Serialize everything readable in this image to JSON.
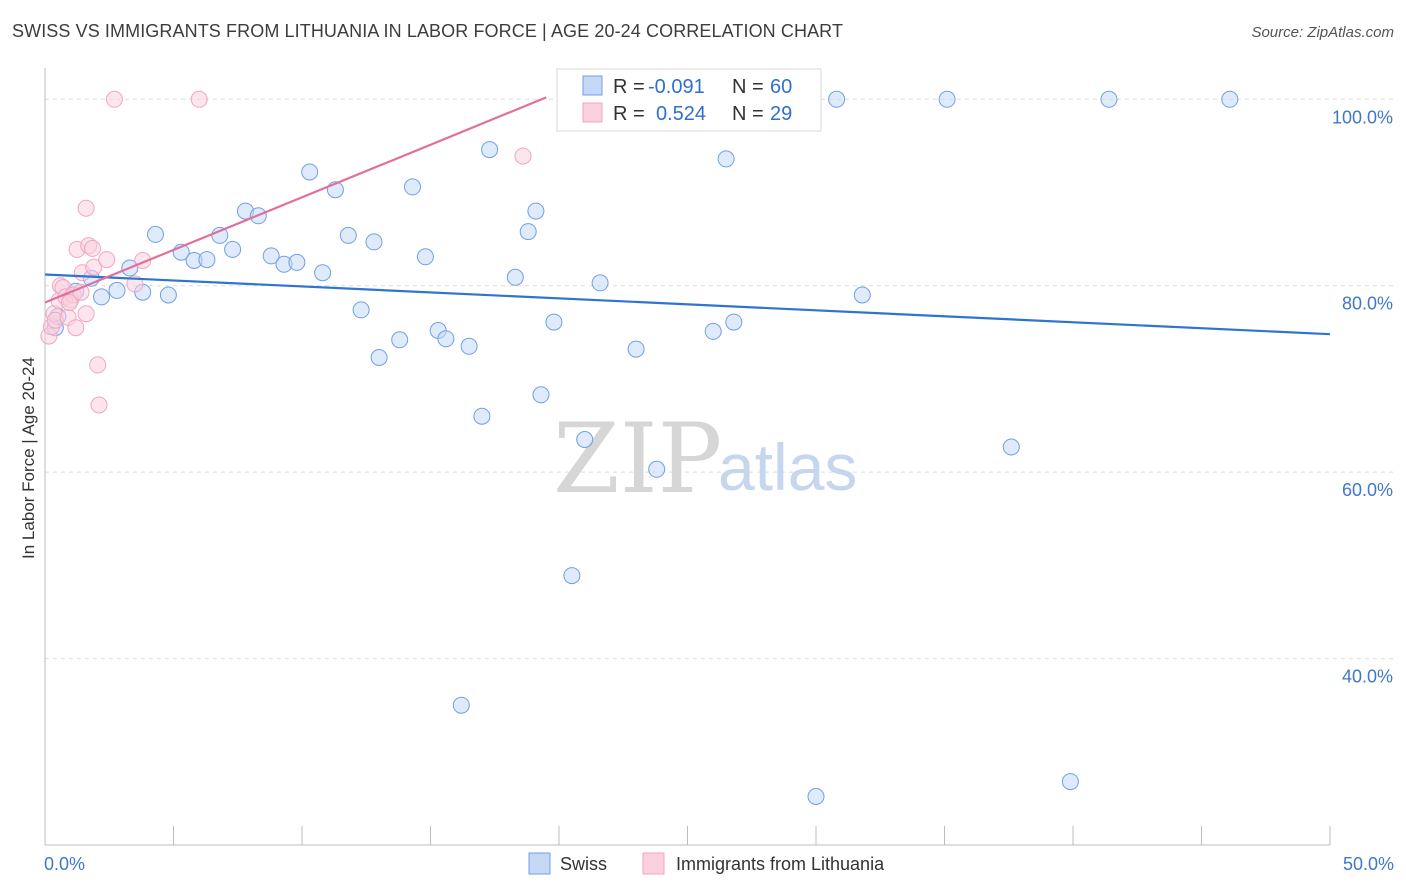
{
  "title": "SWISS VS IMMIGRANTS FROM LITHUANIA IN LABOR FORCE | AGE 20-24 CORRELATION CHART",
  "source": "Source: ZipAtlas.com",
  "watermark": {
    "zip": "ZIP",
    "atlas": "atlas"
  },
  "chart_data": {
    "type": "scatter",
    "ylabel": "In Labor Force | Age 20-24",
    "xlim": [
      0,
      50
    ],
    "ylim": [
      20,
      104
    ],
    "x_tick_labels": {
      "min": "0.0%",
      "max": "50.0%"
    },
    "y_ticks": [
      {
        "value": 100,
        "label": "100.0%"
      },
      {
        "value": 80,
        "label": "80.0%"
      },
      {
        "value": 60,
        "label": "60.0%"
      },
      {
        "value": 40,
        "label": "40.0%"
      }
    ],
    "grid": true,
    "legend_placement": "top-center",
    "stats": [
      {
        "r_label": "R =",
        "r_value": "-0.091",
        "n_label": "N =",
        "n_value": "60"
      },
      {
        "r_label": "R =",
        "r_value": "0.524",
        "n_label": "N =",
        "n_value": "29"
      }
    ],
    "series": [
      {
        "name": "Swiss",
        "color": "#6fa0e6",
        "fill": "#c4d8f5",
        "line_color": "#2f74d0",
        "trend": {
          "x0": 0,
          "y0": 81.2,
          "x1": 50,
          "y1": 74.8
        },
        "points": [
          [
            0.4,
            75.5
          ],
          [
            0.5,
            76.7
          ],
          [
            1.2,
            79.4
          ],
          [
            1.8,
            80.8
          ],
          [
            2.2,
            78.8
          ],
          [
            2.8,
            79.5
          ],
          [
            3.3,
            81.9
          ],
          [
            3.8,
            79.3
          ],
          [
            4.3,
            85.5
          ],
          [
            4.8,
            79.0
          ],
          [
            5.3,
            83.6
          ],
          [
            5.8,
            82.7
          ],
          [
            6.3,
            82.8
          ],
          [
            6.8,
            85.4
          ],
          [
            7.3,
            83.9
          ],
          [
            7.8,
            88.0
          ],
          [
            8.3,
            87.5
          ],
          [
            8.8,
            83.2
          ],
          [
            9.3,
            82.3
          ],
          [
            9.8,
            82.5
          ],
          [
            10.3,
            92.2
          ],
          [
            10.8,
            81.4
          ],
          [
            11.3,
            90.3
          ],
          [
            11.8,
            85.4
          ],
          [
            12.3,
            77.4
          ],
          [
            12.8,
            84.7
          ],
          [
            13.0,
            72.3
          ],
          [
            13.8,
            74.2
          ],
          [
            14.3,
            90.6
          ],
          [
            14.8,
            83.1
          ],
          [
            15.3,
            75.2
          ],
          [
            15.6,
            74.3
          ],
          [
            16.5,
            73.5
          ],
          [
            17.0,
            66.0
          ],
          [
            17.3,
            94.6
          ],
          [
            18.3,
            80.9
          ],
          [
            18.8,
            85.8
          ],
          [
            19.1,
            88.0
          ],
          [
            19.3,
            68.3
          ],
          [
            19.8,
            76.1
          ],
          [
            20.5,
            48.9
          ],
          [
            21.0,
            63.5
          ],
          [
            21.6,
            80.3
          ],
          [
            22.2,
            100.0
          ],
          [
            23.0,
            73.2
          ],
          [
            23.8,
            60.3
          ],
          [
            25.0,
            100.0
          ],
          [
            26.0,
            75.1
          ],
          [
            26.5,
            93.6
          ],
          [
            26.8,
            76.1
          ],
          [
            30.0,
            25.2
          ],
          [
            30.8,
            100.0
          ],
          [
            31.8,
            79.0
          ],
          [
            35.1,
            100.0
          ],
          [
            37.6,
            62.7
          ],
          [
            39.9,
            26.8
          ],
          [
            41.4,
            100.0
          ],
          [
            46.1,
            100.0
          ],
          [
            16.2,
            35.0
          ],
          [
            24.5,
            100.0
          ]
        ]
      },
      {
        "name": "Immigrants from Lithuania",
        "color": "#f0a6c0",
        "fill": "#fad0de",
        "line_color": "#e0709c",
        "trend": {
          "x0": 0,
          "y0": 78.2,
          "x1": 19.5,
          "y1": 100.2
        },
        "points": [
          [
            0.15,
            74.6
          ],
          [
            0.25,
            75.6
          ],
          [
            0.35,
            77.0
          ],
          [
            0.4,
            76.3
          ],
          [
            0.55,
            78.4
          ],
          [
            0.6,
            80.0
          ],
          [
            0.7,
            79.8
          ],
          [
            0.8,
            78.8
          ],
          [
            0.9,
            76.6
          ],
          [
            1.0,
            78.5
          ],
          [
            1.1,
            79.0
          ],
          [
            1.2,
            75.5
          ],
          [
            1.25,
            83.9
          ],
          [
            1.4,
            79.3
          ],
          [
            1.45,
            81.4
          ],
          [
            1.6,
            77.0
          ],
          [
            1.7,
            84.3
          ],
          [
            1.85,
            84.0
          ],
          [
            1.9,
            82.0
          ],
          [
            2.05,
            71.5
          ],
          [
            2.1,
            67.2
          ],
          [
            2.4,
            82.8
          ],
          [
            2.7,
            100.0
          ],
          [
            3.5,
            80.2
          ],
          [
            3.8,
            82.7
          ],
          [
            6.0,
            100.0
          ],
          [
            18.6,
            93.9
          ],
          [
            1.6,
            88.3
          ],
          [
            0.95,
            78.2
          ]
        ]
      }
    ]
  }
}
